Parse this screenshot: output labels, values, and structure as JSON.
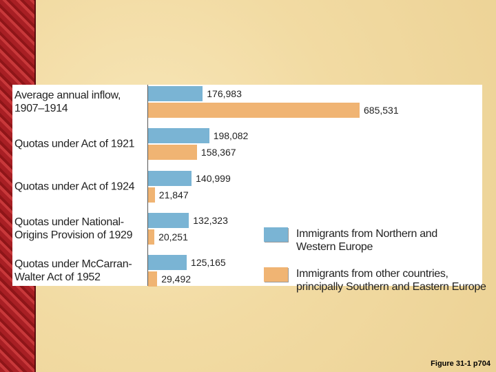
{
  "chart_data": {
    "type": "bar",
    "categories": [
      "Average annual inflow,\n1907–1914",
      "Quotas under Act of 1921",
      "Quotas under Act of 1924",
      "Quotas under National-\nOrigins Provision of 1929",
      "Quotas under McCarran-\nWalter Act of 1952"
    ],
    "series": [
      {
        "name": "Immigrants from Northern and\nWestern Europe",
        "color": "#7ab4d4",
        "values": [
          176983,
          198082,
          140999,
          132323,
          125165
        ],
        "value_labels": [
          "176,983",
          "198,082",
          "140,999",
          "132,323",
          "125,165"
        ]
      },
      {
        "name": "Immigrants from other countries,\nprincipally Southern and Eastern Europe",
        "color": "#f0b473",
        "values": [
          685531,
          158367,
          21847,
          20251,
          29492
        ],
        "value_labels": [
          "685,531",
          "158,367",
          "21,847",
          "20,251",
          "29,492"
        ]
      }
    ]
  },
  "footer": "Figure 31-1 p704"
}
